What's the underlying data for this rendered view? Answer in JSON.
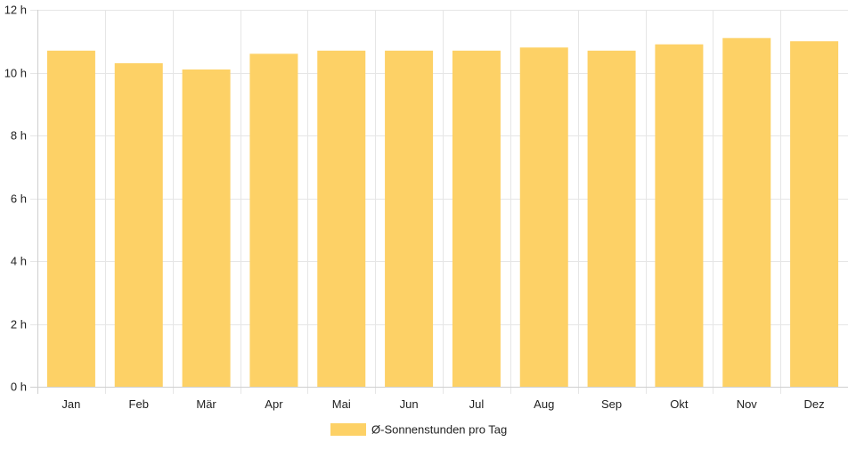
{
  "chart_data": {
    "type": "bar",
    "categories": [
      "Jan",
      "Feb",
      "Mär",
      "Apr",
      "Mai",
      "Jun",
      "Jul",
      "Aug",
      "Sep",
      "Okt",
      "Nov",
      "Dez"
    ],
    "series": [
      {
        "name": "Ø-Sonnenstunden pro Tag",
        "values": [
          10.7,
          10.3,
          10.1,
          10.6,
          10.7,
          10.7,
          10.7,
          10.8,
          10.7,
          10.9,
          11.1,
          11.0
        ],
        "color": "#fdd166"
      }
    ],
    "ylim": [
      0,
      12
    ],
    "y_ticks": [
      0,
      2,
      4,
      6,
      8,
      10,
      12
    ],
    "y_tick_suffix": " h",
    "grid": true,
    "grid_color": "#e6e6e6",
    "legend_position": "bottom",
    "title": "",
    "xlabel": "",
    "ylabel": ""
  }
}
